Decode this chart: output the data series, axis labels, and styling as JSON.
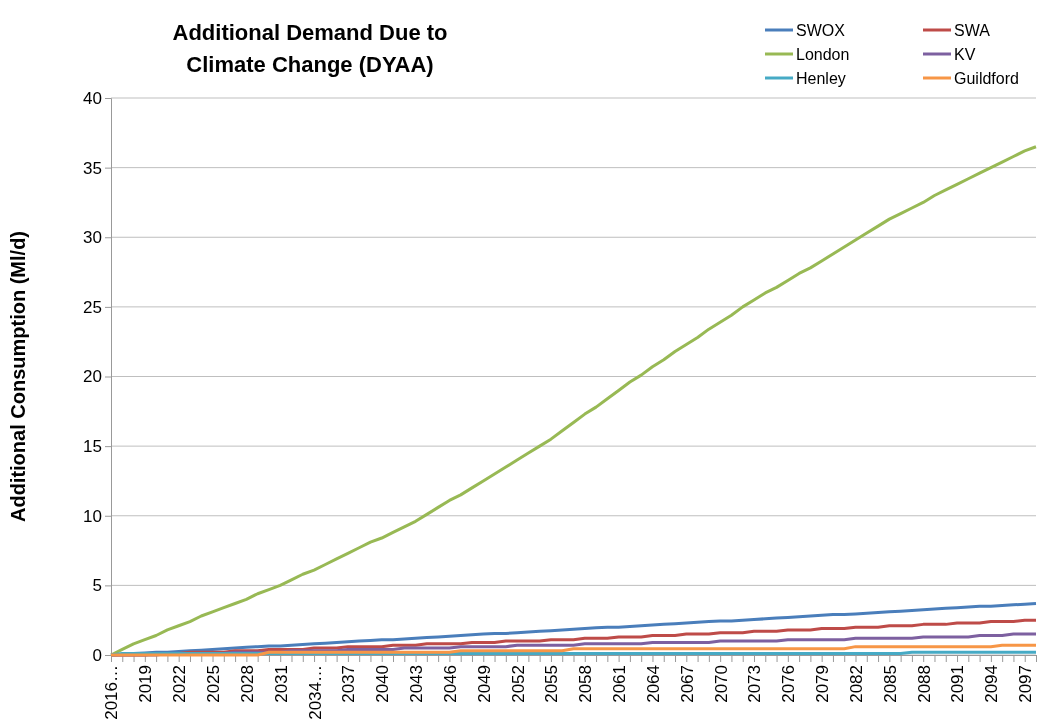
{
  "chart_data": {
    "type": "line",
    "title": "Additional Demand Due to Climate Change (DYAA)",
    "ylabel": "Additional Consumption (Ml/d)",
    "categories": [
      "2016…",
      null,
      null,
      "2019",
      null,
      null,
      "2022",
      null,
      null,
      "2025",
      null,
      null,
      "2028",
      null,
      null,
      "2031",
      null,
      null,
      "2034…",
      null,
      null,
      "2037",
      null,
      null,
      "2040",
      null,
      null,
      "2043",
      null,
      null,
      "2046",
      null,
      null,
      "2049",
      null,
      null,
      "2052",
      null,
      null,
      "2055",
      null,
      null,
      "2058",
      null,
      null,
      "2061",
      null,
      null,
      "2064",
      null,
      null,
      "2067",
      null,
      null,
      "2070",
      null,
      null,
      "2073",
      null,
      null,
      "2076",
      null,
      null,
      "2079",
      null,
      null,
      "2082",
      null,
      null,
      "2085",
      null,
      null,
      "2088",
      null,
      null,
      "2091",
      null,
      null,
      "2094",
      null,
      null,
      "2097",
      null
    ],
    "ylim": [
      0,
      40
    ],
    "yticks": [
      0,
      5,
      10,
      15,
      20,
      25,
      30,
      35,
      40
    ],
    "grid": "y",
    "legend": "top right",
    "series": [
      {
        "name": "SWOX",
        "color": "#4a7ebb",
        "values": [
          0,
          0.05,
          0.1,
          0.15,
          0.2,
          0.2,
          0.25,
          0.3,
          0.35,
          0.4,
          0.45,
          0.5,
          0.55,
          0.6,
          0.65,
          0.65,
          0.7,
          0.75,
          0.8,
          0.85,
          0.9,
          0.95,
          1.0,
          1.05,
          1.1,
          1.1,
          1.15,
          1.2,
          1.25,
          1.3,
          1.35,
          1.4,
          1.45,
          1.5,
          1.55,
          1.55,
          1.6,
          1.65,
          1.7,
          1.75,
          1.8,
          1.85,
          1.9,
          1.95,
          2.0,
          2.0,
          2.05,
          2.1,
          2.15,
          2.2,
          2.25,
          2.3,
          2.35,
          2.4,
          2.45,
          2.45,
          2.5,
          2.55,
          2.6,
          2.65,
          2.7,
          2.75,
          2.8,
          2.85,
          2.9,
          2.9,
          2.95,
          3.0,
          3.05,
          3.1,
          3.15,
          3.2,
          3.25,
          3.3,
          3.35,
          3.4,
          3.45,
          3.5,
          3.5,
          3.55,
          3.6,
          3.65,
          3.7
        ]
      },
      {
        "name": "SWA",
        "color": "#be4b48",
        "values": [
          0,
          0,
          0,
          0,
          0.1,
          0.1,
          0.1,
          0.2,
          0.2,
          0.2,
          0.2,
          0.3,
          0.3,
          0.3,
          0.4,
          0.4,
          0.4,
          0.4,
          0.5,
          0.5,
          0.5,
          0.6,
          0.6,
          0.6,
          0.6,
          0.7,
          0.7,
          0.7,
          0.8,
          0.8,
          0.8,
          0.8,
          0.9,
          0.9,
          0.9,
          1.0,
          1.0,
          1.0,
          1.0,
          1.1,
          1.1,
          1.1,
          1.2,
          1.2,
          1.2,
          1.3,
          1.3,
          1.3,
          1.4,
          1.4,
          1.4,
          1.5,
          1.5,
          1.5,
          1.6,
          1.6,
          1.6,
          1.7,
          1.7,
          1.7,
          1.8,
          1.8,
          1.8,
          1.9,
          1.9,
          1.9,
          2.0,
          2.0,
          2.0,
          2.1,
          2.1,
          2.1,
          2.2,
          2.2,
          2.2,
          2.3,
          2.3,
          2.3,
          2.4,
          2.4,
          2.4,
          2.5,
          2.5
        ]
      },
      {
        "name": "London",
        "color": "#98b954",
        "values": [
          0,
          0.4,
          0.8,
          1.1,
          1.4,
          1.8,
          2.1,
          2.4,
          2.8,
          3.1,
          3.4,
          3.7,
          4.0,
          4.4,
          4.7,
          5.0,
          5.4,
          5.8,
          6.1,
          6.5,
          6.9,
          7.3,
          7.7,
          8.1,
          8.4,
          8.8,
          9.2,
          9.6,
          10.1,
          10.6,
          11.1,
          11.5,
          12.0,
          12.5,
          13.0,
          13.5,
          14.0,
          14.5,
          15.0,
          15.5,
          16.1,
          16.7,
          17.3,
          17.8,
          18.4,
          19.0,
          19.6,
          20.1,
          20.7,
          21.2,
          21.8,
          22.3,
          22.8,
          23.4,
          23.9,
          24.4,
          25.0,
          25.5,
          26.0,
          26.4,
          26.9,
          27.4,
          27.8,
          28.3,
          28.8,
          29.3,
          29.8,
          30.3,
          30.8,
          31.3,
          31.7,
          32.1,
          32.5,
          33.0,
          33.4,
          33.8,
          34.2,
          34.6,
          35.0,
          35.4,
          35.8,
          36.2,
          36.5
        ]
      },
      {
        "name": "KV",
        "color": "#7d60a0",
        "values": [
          0,
          0,
          0,
          0,
          0,
          0.1,
          0.1,
          0.1,
          0.1,
          0.1,
          0.1,
          0.2,
          0.2,
          0.2,
          0.2,
          0.2,
          0.3,
          0.3,
          0.3,
          0.3,
          0.3,
          0.4,
          0.4,
          0.4,
          0.4,
          0.4,
          0.5,
          0.5,
          0.5,
          0.5,
          0.5,
          0.6,
          0.6,
          0.6,
          0.6,
          0.6,
          0.7,
          0.7,
          0.7,
          0.7,
          0.7,
          0.7,
          0.8,
          0.8,
          0.8,
          0.8,
          0.8,
          0.8,
          0.9,
          0.9,
          0.9,
          0.9,
          0.9,
          0.9,
          1.0,
          1.0,
          1.0,
          1.0,
          1.0,
          1.0,
          1.1,
          1.1,
          1.1,
          1.1,
          1.1,
          1.1,
          1.2,
          1.2,
          1.2,
          1.2,
          1.2,
          1.2,
          1.3,
          1.3,
          1.3,
          1.3,
          1.3,
          1.4,
          1.4,
          1.4,
          1.5,
          1.5,
          1.5
        ]
      },
      {
        "name": "Henley",
        "color": "#46aac5",
        "values": [
          0,
          0.1,
          0.1,
          0.1,
          0.1,
          0.1,
          0.1,
          0.1,
          0.1,
          0.1,
          0.1,
          0.1,
          0.1,
          0.1,
          0.1,
          0.1,
          0.1,
          0.1,
          0.1,
          0.1,
          0.1,
          0.1,
          0.1,
          0.1,
          0.1,
          0.1,
          0.1,
          0.1,
          0.1,
          0.1,
          0.1,
          0.1,
          0.1,
          0.1,
          0.1,
          0.1,
          0.1,
          0.1,
          0.1,
          0.1,
          0.1,
          0.1,
          0.1,
          0.1,
          0.1,
          0.1,
          0.1,
          0.1,
          0.1,
          0.1,
          0.1,
          0.1,
          0.1,
          0.1,
          0.1,
          0.1,
          0.1,
          0.1,
          0.1,
          0.1,
          0.1,
          0.1,
          0.1,
          0.1,
          0.1,
          0.1,
          0.1,
          0.1,
          0.1,
          0.1,
          0.1,
          0.2,
          0.2,
          0.2,
          0.2,
          0.2,
          0.2,
          0.2,
          0.2,
          0.2,
          0.2,
          0.2,
          0.2
        ]
      },
      {
        "name": "Guildford",
        "color": "#f79646",
        "values": [
          0,
          0,
          0,
          0,
          0,
          0,
          0,
          0,
          0,
          0,
          0,
          0,
          0,
          0,
          0.2,
          0.2,
          0.2,
          0.2,
          0.2,
          0.2,
          0.2,
          0.2,
          0.2,
          0.2,
          0.2,
          0.2,
          0.2,
          0.2,
          0.2,
          0.2,
          0.2,
          0.3,
          0.3,
          0.3,
          0.3,
          0.3,
          0.3,
          0.3,
          0.3,
          0.3,
          0.3,
          0.45,
          0.45,
          0.45,
          0.45,
          0.45,
          0.45,
          0.45,
          0.45,
          0.45,
          0.45,
          0.45,
          0.45,
          0.45,
          0.45,
          0.45,
          0.45,
          0.45,
          0.45,
          0.45,
          0.45,
          0.45,
          0.45,
          0.45,
          0.45,
          0.45,
          0.6,
          0.6,
          0.6,
          0.6,
          0.6,
          0.6,
          0.6,
          0.6,
          0.6,
          0.6,
          0.6,
          0.6,
          0.6,
          0.7,
          0.7,
          0.7,
          0.7
        ]
      }
    ]
  }
}
